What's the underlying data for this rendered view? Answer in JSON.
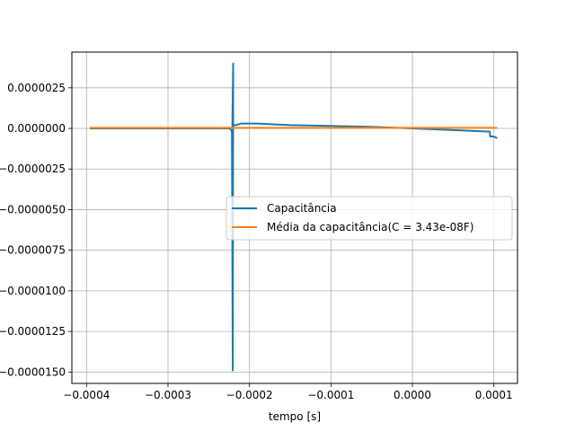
{
  "chart_data": {
    "type": "line",
    "title": "",
    "xlabel": "tempo [s]",
    "ylabel": "",
    "xlim": [
      -0.000418,
      0.000129
    ],
    "ylim": [
      -1.57e-05,
      4.7e-06
    ],
    "grid": true,
    "legend_position": "center-right",
    "xticks": [
      {
        "value": -0.0004,
        "label": "−0.0004"
      },
      {
        "value": -0.0003,
        "label": "−0.0003"
      },
      {
        "value": -0.0002,
        "label": "−0.0002"
      },
      {
        "value": -0.0001,
        "label": "−0.0001"
      },
      {
        "value": 0.0,
        "label": "0.0000"
      },
      {
        "value": 0.0001,
        "label": "0.0001"
      }
    ],
    "yticks": [
      {
        "value": 2.5e-06,
        "label": "0.0000025"
      },
      {
        "value": 0.0,
        "label": "0.0000000"
      },
      {
        "value": -2.5e-06,
        "label": "−0.0000025"
      },
      {
        "value": -5e-06,
        "label": "−0.0000050"
      },
      {
        "value": -7.5e-06,
        "label": "−0.0000075"
      },
      {
        "value": -1e-05,
        "label": "−0.0000100"
      },
      {
        "value": -1.25e-05,
        "label": "−0.0000125"
      },
      {
        "value": -1.5e-05,
        "label": "−0.0000150"
      }
    ],
    "series": [
      {
        "name": "Capacitância",
        "color": "#1f77b4",
        "x": [
          -0.000396,
          -0.0003,
          -0.000225,
          -0.000222,
          -0.0002215,
          -0.0002205,
          -0.00022,
          -0.000221,
          -0.000219,
          -0.000217,
          -0.00021,
          -0.0002,
          -0.00019,
          -0.00017,
          -0.00015,
          -0.0001,
          -5e-05,
          0.0,
          5e-05,
          9.5e-05,
          9.55e-05,
          0.0001,
          0.000104
        ],
        "y": [
          0.0,
          0.0,
          0.0,
          -1e-07,
          -3e-07,
          -1.49e-05,
          4e-06,
          1e-07,
          2e-07,
          2e-07,
          3e-07,
          3e-07,
          3e-07,
          2.5e-07,
          2e-07,
          1.5e-07,
          1e-07,
          0.0,
          -1e-07,
          -2e-07,
          -5e-07,
          -5e-07,
          -6e-07
        ]
      },
      {
        "name": "Média da capacitância(C = 3.43e-08F)",
        "color": "#ff7f0e",
        "x": [
          -0.000396,
          0.000104
        ],
        "y": [
          3.43e-08,
          3.43e-08
        ]
      }
    ]
  }
}
